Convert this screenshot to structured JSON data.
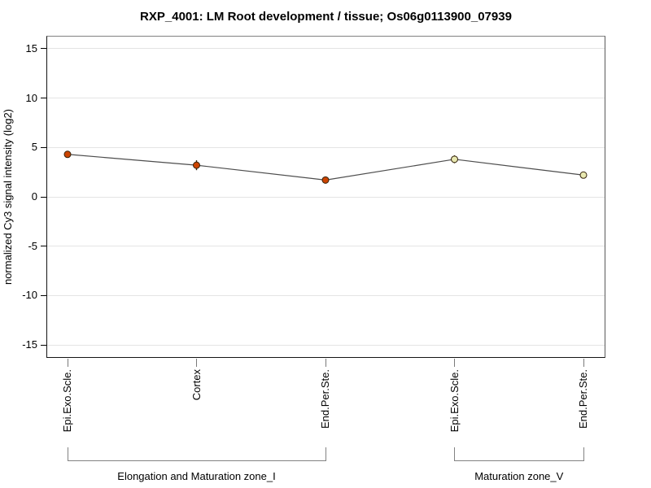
{
  "chart_data": {
    "type": "line",
    "title": "RXP_4001: LM Root development / tissue; Os06g0113900_07939",
    "ylabel": "normalized Cy3 signal intensity (log2)",
    "xlabel": "",
    "categories": [
      "Epi.Exo.Scle.",
      "Cortex",
      "End.Per.Ste.",
      "Epi.Exo.Scle.",
      "End.Per.Ste."
    ],
    "values": [
      4.3,
      3.2,
      1.7,
      3.8,
      2.2
    ],
    "errors": [
      0.25,
      0.5,
      0.35,
      0.4,
      0.25
    ],
    "groups": [
      {
        "label": "Elongation and Maturation zone_I",
        "start": 0,
        "end": 2
      },
      {
        "label": "Maturation zone_V",
        "start": 3,
        "end": 4
      }
    ],
    "yticks": [
      15,
      10,
      5,
      0,
      -5,
      -10,
      -15
    ],
    "ylim": [
      -16.3,
      16.3
    ],
    "grid": true,
    "legend": "none",
    "colors": {
      "point_fill": [
        "#cc4400",
        "#cc4400",
        "#cc4400",
        "#e8e8b0",
        "#e8e8b0"
      ],
      "point_border": "#33220a",
      "line": "#4d4d4d",
      "grid": "#e4e4e4",
      "axis_tick": "#000000",
      "x_tick": "#7a7a7a",
      "bracket": "#828282",
      "text": "#000000"
    }
  }
}
